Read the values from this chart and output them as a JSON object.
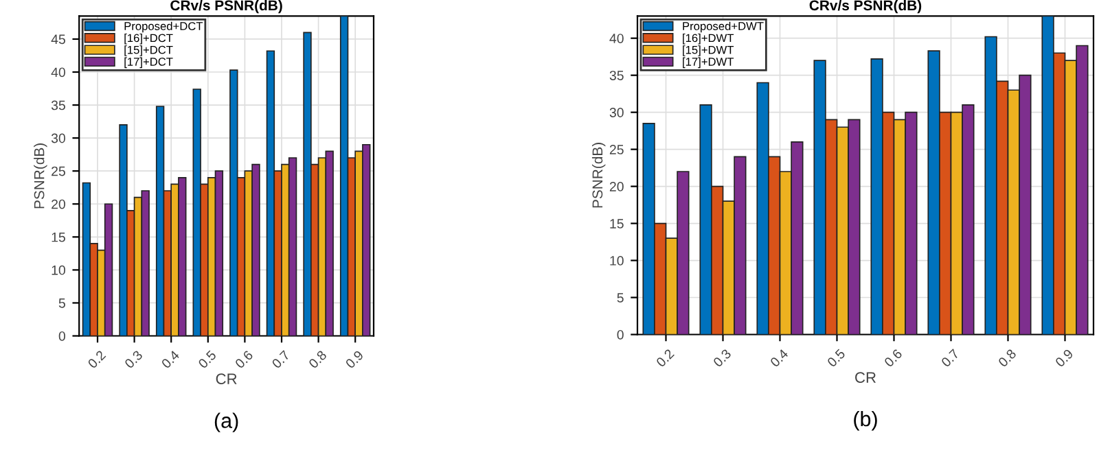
{
  "chart_data": [
    {
      "type": "bar",
      "title": "CRv/s PSNR(dB)",
      "xlabel": "CR",
      "ylabel": "PSNR(dB)",
      "categories": [
        "0.2",
        "0.3",
        "0.4",
        "0.5",
        "0.6",
        "0.7",
        "0.8",
        "0.9"
      ],
      "series": [
        {
          "name": "Proposed+DCT",
          "color": "#0072bd",
          "values": [
            23.2,
            32,
            34.8,
            37.4,
            40.3,
            43.2,
            46,
            48.5
          ]
        },
        {
          "name": "[16]+DCT",
          "color": "#d95319",
          "values": [
            14,
            19,
            22,
            23,
            24,
            25,
            26,
            27
          ]
        },
        {
          "name": "[15]+DCT",
          "color": "#edb120",
          "values": [
            13,
            21,
            23,
            24,
            25,
            26,
            27,
            28
          ]
        },
        {
          "name": "[17]+DCT",
          "color": "#7e2f8e",
          "values": [
            20,
            22,
            24,
            25,
            26,
            27,
            28,
            29
          ]
        }
      ],
      "ylim": [
        0,
        48.5
      ],
      "yticks": [
        0,
        5,
        10,
        15,
        20,
        25,
        30,
        35,
        40,
        45
      ],
      "grid": true,
      "legend": "top left",
      "annotations": [
        "(a)"
      ]
    },
    {
      "type": "bar",
      "title": "CRv/s PSNR(dB)",
      "xlabel": "CR",
      "ylabel": "PSNR(dB)",
      "categories": [
        "0.2",
        "0.3",
        "0.4",
        "0.5",
        "0.6",
        "0.7",
        "0.8",
        "0.9"
      ],
      "series": [
        {
          "name": "Proposed+DWT",
          "color": "#0072bd",
          "values": [
            28.5,
            31,
            34,
            37,
            37.2,
            38.3,
            40.2,
            43
          ]
        },
        {
          "name": "[16]+DWT",
          "color": "#d95319",
          "values": [
            15,
            20,
            24,
            29,
            30,
            30,
            34.2,
            38
          ]
        },
        {
          "name": "[15]+DWT",
          "color": "#edb120",
          "values": [
            13,
            18,
            22,
            28,
            29,
            30,
            33,
            37
          ]
        },
        {
          "name": "[17]+DWT",
          "color": "#7e2f8e",
          "values": [
            22,
            24,
            26,
            29,
            30,
            31,
            35,
            39
          ]
        }
      ],
      "ylim": [
        0,
        43
      ],
      "yticks": [
        0,
        5,
        10,
        15,
        20,
        25,
        30,
        35,
        40
      ],
      "grid": true,
      "legend": "top left",
      "annotations": [
        "(b)"
      ]
    }
  ]
}
